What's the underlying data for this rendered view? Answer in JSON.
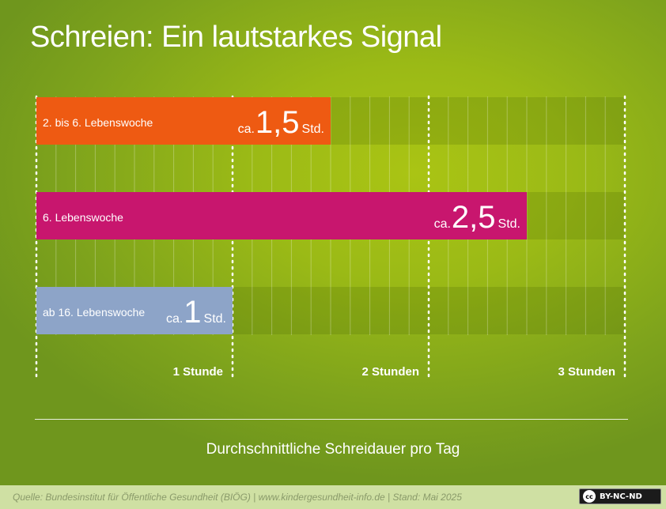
{
  "title": "Schreien: Ein lautstarkes Signal",
  "chart_data": {
    "type": "bar",
    "orientation": "horizontal",
    "xlim": [
      0,
      3
    ],
    "xticks": [
      {
        "value": 1,
        "label": "1 Stunde"
      },
      {
        "value": 2,
        "label": "2 Stunden"
      },
      {
        "value": 3,
        "label": "3 Stunden"
      }
    ],
    "categories": [
      "2. bis 6. Lebenswoche",
      "6. Lebenswoche",
      "ab 16. Lebenswoche"
    ],
    "values": [
      1.5,
      2.5,
      1
    ],
    "value_labels": [
      {
        "prefix": "ca.",
        "number": "1,5",
        "unit": "Std."
      },
      {
        "prefix": "ca.",
        "number": "2,5",
        "unit": "Std."
      },
      {
        "prefix": "ca.",
        "number": "1",
        "unit": "Std."
      }
    ],
    "colors": [
      "#ee5a12",
      "#c8166e",
      "#8da4c8"
    ],
    "xlabel": "Durchschnittliche Schreidauer pro Tag",
    "grid": true
  },
  "footer": {
    "source": "Quelle: Bundesinstitut für Öffentliche Gesundheit (BIÖG) | www.kindergesundheit-info.de | Stand: Mai 2025",
    "license_icon": "cc-icon",
    "license_icon_text": "cc",
    "license_text": "BY-NC-ND"
  }
}
